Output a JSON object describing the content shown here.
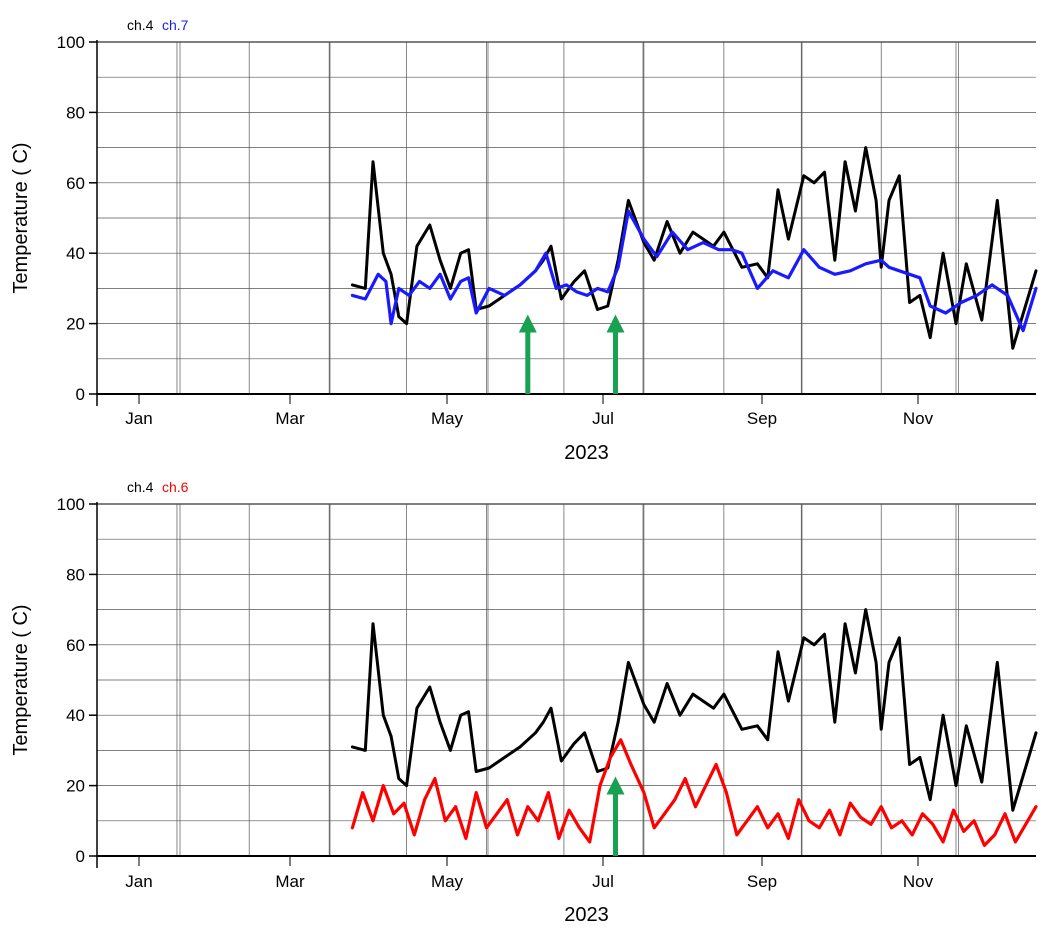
{
  "colors": {
    "ch4": "#000000",
    "ch7": "#1a1aff",
    "ch6": "#ff0000",
    "arrow": "#19a152",
    "grid": "#555555"
  },
  "chart_data": [
    {
      "type": "line",
      "legend": [
        "ch.4",
        "ch.7"
      ],
      "legend_placement": "top-left",
      "xlabel": "2023",
      "ylabel": "Temperature ( C)",
      "x_tick_labels": [
        "Jan",
        "Mar",
        "May",
        "Jul",
        "Sep",
        "Nov"
      ],
      "y_ticks": [
        0,
        20,
        40,
        60,
        80,
        100
      ],
      "ylim": [
        0,
        100
      ],
      "xlim": [
        "2023-01-01",
        "2023-12-31"
      ],
      "grid": true,
      "series": [
        {
          "name": "ch.4",
          "color": "#000000",
          "x": [
            "2023-04-10",
            "2023-04-15",
            "2023-04-18",
            "2023-04-22",
            "2023-04-25",
            "2023-04-28",
            "2023-05-01",
            "2023-05-05",
            "2023-05-10",
            "2023-05-14",
            "2023-05-18",
            "2023-05-22",
            "2023-05-25",
            "2023-05-28",
            "2023-06-02",
            "2023-06-08",
            "2023-06-14",
            "2023-06-20",
            "2023-06-23",
            "2023-06-26",
            "2023-06-30",
            "2023-07-05",
            "2023-07-09",
            "2023-07-14",
            "2023-07-18",
            "2023-07-22",
            "2023-07-26",
            "2023-08-01",
            "2023-08-05",
            "2023-08-10",
            "2023-08-15",
            "2023-08-20",
            "2023-08-24",
            "2023-08-28",
            "2023-09-01",
            "2023-09-08",
            "2023-09-14",
            "2023-09-18",
            "2023-09-22",
            "2023-09-26",
            "2023-10-02",
            "2023-10-06",
            "2023-10-10",
            "2023-10-14",
            "2023-10-18",
            "2023-10-22",
            "2023-10-26",
            "2023-10-30",
            "2023-11-01",
            "2023-11-04",
            "2023-11-08",
            "2023-11-12",
            "2023-11-16",
            "2023-11-20",
            "2023-11-25",
            "2023-11-30",
            "2023-12-04",
            "2023-12-10",
            "2023-12-16",
            "2023-12-22",
            "2023-12-31"
          ],
          "values": [
            31,
            30,
            66,
            40,
            34,
            22,
            20,
            42,
            48,
            38,
            30,
            40,
            41,
            24,
            25,
            28,
            31,
            35,
            38,
            42,
            27,
            32,
            35,
            24,
            25,
            38,
            55,
            43,
            38,
            49,
            40,
            46,
            44,
            42,
            46,
            36,
            37,
            33,
            58,
            44,
            62,
            60,
            63,
            38,
            66,
            52,
            70,
            55,
            36,
            55,
            62,
            26,
            28,
            16,
            40,
            20,
            37,
            21,
            55,
            13,
            35
          ]
        },
        {
          "name": "ch.7",
          "color": "#1a1aff",
          "x": [
            "2023-04-10",
            "2023-04-15",
            "2023-04-20",
            "2023-04-23",
            "2023-04-25",
            "2023-04-28",
            "2023-05-02",
            "2023-05-06",
            "2023-05-10",
            "2023-05-14",
            "2023-05-18",
            "2023-05-22",
            "2023-05-25",
            "2023-05-28",
            "2023-06-02",
            "2023-06-08",
            "2023-06-14",
            "2023-06-20",
            "2023-06-24",
            "2023-06-28",
            "2023-07-02",
            "2023-07-06",
            "2023-07-10",
            "2023-07-14",
            "2023-07-18",
            "2023-07-22",
            "2023-07-26",
            "2023-08-01",
            "2023-08-06",
            "2023-08-12",
            "2023-08-18",
            "2023-08-24",
            "2023-08-30",
            "2023-09-04",
            "2023-09-08",
            "2023-09-14",
            "2023-09-20",
            "2023-09-26",
            "2023-10-02",
            "2023-10-08",
            "2023-10-14",
            "2023-10-20",
            "2023-10-26",
            "2023-11-01",
            "2023-11-04",
            "2023-11-08",
            "2023-11-12",
            "2023-11-16",
            "2023-11-20",
            "2023-11-26",
            "2023-12-02",
            "2023-12-08",
            "2023-12-14",
            "2023-12-20",
            "2023-12-26",
            "2023-12-31"
          ],
          "values": [
            28,
            27,
            34,
            32,
            20,
            30,
            28,
            32,
            30,
            34,
            27,
            32,
            33,
            23,
            30,
            28,
            31,
            35,
            40,
            30,
            31,
            29,
            28,
            30,
            29,
            36,
            52,
            44,
            39,
            46,
            41,
            43,
            41,
            41,
            40,
            30,
            35,
            33,
            41,
            36,
            34,
            35,
            37,
            38,
            36,
            35,
            34,
            33,
            25,
            23,
            26,
            28,
            31,
            28,
            18,
            30
          ]
        }
      ],
      "annotations": [
        {
          "type": "arrow",
          "direction": "up",
          "x": "2023-06-17",
          "y_from": 0,
          "y_to": 22,
          "color": "#19a152"
        },
        {
          "type": "arrow",
          "direction": "up",
          "x": "2023-07-21",
          "y_from": 0,
          "y_to": 22,
          "color": "#19a152"
        }
      ]
    },
    {
      "type": "line",
      "legend": [
        "ch.4",
        "ch.6"
      ],
      "legend_placement": "top-left",
      "xlabel": "2023",
      "ylabel": "Temperature ( C)",
      "x_tick_labels": [
        "Jan",
        "Mar",
        "May",
        "Jul",
        "Sep",
        "Nov"
      ],
      "y_ticks": [
        0,
        20,
        40,
        60,
        80,
        100
      ],
      "ylim": [
        0,
        100
      ],
      "xlim": [
        "2023-01-01",
        "2023-12-31"
      ],
      "grid": true,
      "series": [
        {
          "name": "ch.4",
          "color": "#000000",
          "x": [
            "2023-04-10",
            "2023-04-15",
            "2023-04-18",
            "2023-04-22",
            "2023-04-25",
            "2023-04-28",
            "2023-05-01",
            "2023-05-05",
            "2023-05-10",
            "2023-05-14",
            "2023-05-18",
            "2023-05-22",
            "2023-05-25",
            "2023-05-28",
            "2023-06-02",
            "2023-06-08",
            "2023-06-14",
            "2023-06-20",
            "2023-06-23",
            "2023-06-26",
            "2023-06-30",
            "2023-07-05",
            "2023-07-09",
            "2023-07-14",
            "2023-07-18",
            "2023-07-22",
            "2023-07-26",
            "2023-08-01",
            "2023-08-05",
            "2023-08-10",
            "2023-08-15",
            "2023-08-20",
            "2023-08-24",
            "2023-08-28",
            "2023-09-01",
            "2023-09-08",
            "2023-09-14",
            "2023-09-18",
            "2023-09-22",
            "2023-09-26",
            "2023-10-02",
            "2023-10-06",
            "2023-10-10",
            "2023-10-14",
            "2023-10-18",
            "2023-10-22",
            "2023-10-26",
            "2023-10-30",
            "2023-11-01",
            "2023-11-04",
            "2023-11-08",
            "2023-11-12",
            "2023-11-16",
            "2023-11-20",
            "2023-11-25",
            "2023-11-30",
            "2023-12-04",
            "2023-12-10",
            "2023-12-16",
            "2023-12-22",
            "2023-12-31"
          ],
          "values": [
            31,
            30,
            66,
            40,
            34,
            22,
            20,
            42,
            48,
            38,
            30,
            40,
            41,
            24,
            25,
            28,
            31,
            35,
            38,
            42,
            27,
            32,
            35,
            24,
            25,
            38,
            55,
            43,
            38,
            49,
            40,
            46,
            44,
            42,
            46,
            36,
            37,
            33,
            58,
            44,
            62,
            60,
            63,
            38,
            66,
            52,
            70,
            55,
            36,
            55,
            62,
            26,
            28,
            16,
            40,
            20,
            37,
            21,
            55,
            13,
            35
          ]
        },
        {
          "name": "ch.6",
          "color": "#ff0000",
          "x": [
            "2023-04-10",
            "2023-04-14",
            "2023-04-18",
            "2023-04-22",
            "2023-04-26",
            "2023-04-30",
            "2023-05-04",
            "2023-05-08",
            "2023-05-12",
            "2023-05-16",
            "2023-05-20",
            "2023-05-24",
            "2023-05-28",
            "2023-06-01",
            "2023-06-05",
            "2023-06-09",
            "2023-06-13",
            "2023-06-17",
            "2023-06-21",
            "2023-06-25",
            "2023-06-29",
            "2023-07-03",
            "2023-07-07",
            "2023-07-11",
            "2023-07-15",
            "2023-07-19",
            "2023-07-23",
            "2023-07-27",
            "2023-08-01",
            "2023-08-05",
            "2023-08-09",
            "2023-08-13",
            "2023-08-17",
            "2023-08-21",
            "2023-08-25",
            "2023-08-29",
            "2023-09-02",
            "2023-09-06",
            "2023-09-10",
            "2023-09-14",
            "2023-09-18",
            "2023-09-22",
            "2023-09-26",
            "2023-09-30",
            "2023-10-04",
            "2023-10-08",
            "2023-10-12",
            "2023-10-16",
            "2023-10-20",
            "2023-10-24",
            "2023-10-28",
            "2023-11-01",
            "2023-11-05",
            "2023-11-09",
            "2023-11-13",
            "2023-11-17",
            "2023-11-21",
            "2023-11-25",
            "2023-11-29",
            "2023-12-03",
            "2023-12-07",
            "2023-12-11",
            "2023-12-15",
            "2023-12-19",
            "2023-12-23",
            "2023-12-27",
            "2023-12-31"
          ],
          "values": [
            8,
            18,
            10,
            20,
            12,
            15,
            6,
            16,
            22,
            10,
            14,
            5,
            18,
            8,
            12,
            16,
            6,
            14,
            10,
            18,
            5,
            13,
            8,
            4,
            20,
            28,
            33,
            26,
            18,
            8,
            12,
            16,
            22,
            14,
            20,
            26,
            18,
            6,
            10,
            14,
            8,
            12,
            5,
            16,
            10,
            8,
            13,
            6,
            15,
            11,
            9,
            14,
            8,
            10,
            6,
            12,
            9,
            4,
            13,
            7,
            10,
            3,
            6,
            12,
            4,
            9,
            14
          ]
        }
      ],
      "annotations": [
        {
          "type": "arrow",
          "direction": "up",
          "x": "2023-07-21",
          "y_from": 0,
          "y_to": 22,
          "color": "#19a152"
        }
      ]
    }
  ]
}
